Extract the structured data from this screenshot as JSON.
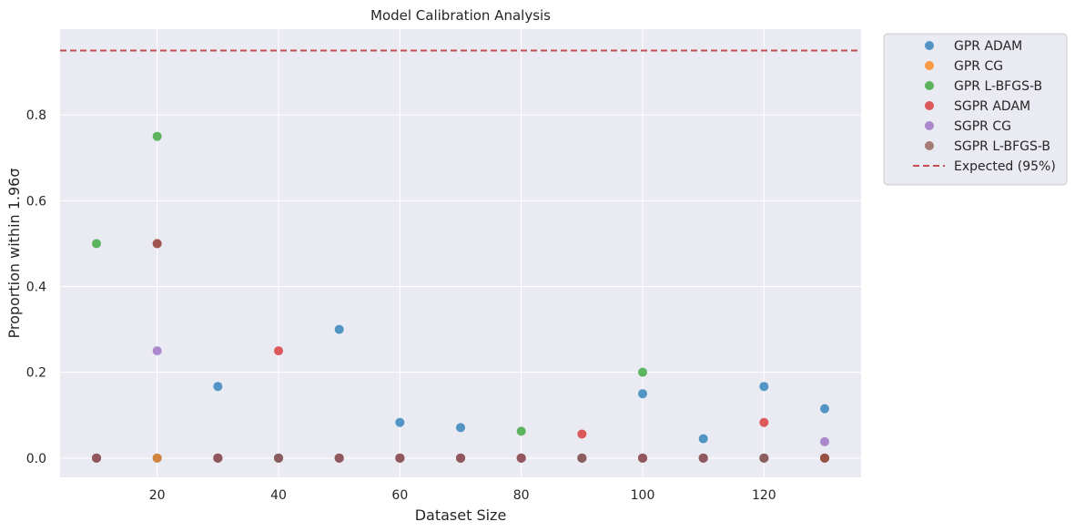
{
  "chart_data": {
    "type": "scatter",
    "title": "Model Calibration Analysis",
    "xlabel": "Dataset Size",
    "ylabel": "Proportion within 1.96σ",
    "xlim": [
      4,
      136
    ],
    "ylim": [
      -0.045,
      1.0
    ],
    "xticks": [
      20,
      40,
      60,
      80,
      100,
      120
    ],
    "yticks": [
      0.0,
      0.2,
      0.4,
      0.6,
      0.8
    ],
    "grid": true,
    "legend_position": "outside-top-right",
    "series": [
      {
        "name": "GPR ADAM",
        "color": "#1f77b4",
        "x": [
          10,
          20,
          30,
          40,
          50,
          60,
          70,
          80,
          90,
          100,
          110,
          120,
          130
        ],
        "y": [
          0.0,
          0.0,
          0.167,
          0.0,
          0.3,
          0.083,
          0.071,
          0.0,
          0.0,
          0.15,
          0.045,
          0.167,
          0.115
        ]
      },
      {
        "name": "GPR CG",
        "color": "#ff7f0e",
        "x": [
          10,
          20,
          30,
          40,
          50,
          60,
          70,
          80,
          90,
          100,
          110,
          120,
          130
        ],
        "y": [
          0.0,
          0.0,
          0.0,
          0.0,
          0.0,
          0.0,
          0.0,
          0.0,
          0.0,
          0.0,
          0.0,
          0.0,
          0.0
        ]
      },
      {
        "name": "GPR L-BFGS-B",
        "color": "#2ca02c",
        "x": [
          10,
          20,
          30,
          40,
          50,
          60,
          70,
          80,
          90,
          100,
          110,
          120,
          130
        ],
        "y": [
          0.5,
          0.75,
          0.0,
          0.0,
          0.0,
          0.0,
          0.0,
          0.0625,
          0.0,
          0.2,
          0.0,
          0.0,
          0.0
        ]
      },
      {
        "name": "SGPR ADAM",
        "color": "#d62728",
        "x": [
          10,
          20,
          30,
          40,
          50,
          60,
          70,
          80,
          90,
          100,
          110,
          120,
          130
        ],
        "y": [
          0.0,
          0.5,
          0.0,
          0.25,
          0.0,
          0.0,
          0.0,
          0.0,
          0.056,
          0.0,
          0.0,
          0.083,
          0.0
        ]
      },
      {
        "name": "SGPR CG",
        "color": "#9467bd",
        "x": [
          10,
          20,
          30,
          40,
          50,
          60,
          70,
          80,
          90,
          100,
          110,
          120,
          130
        ],
        "y": [
          0.0,
          0.25,
          0.0,
          0.0,
          0.0,
          0.0,
          0.0,
          0.0,
          0.0,
          0.0,
          0.0,
          0.0,
          0.038
        ]
      },
      {
        "name": "SGPR L-BFGS-B",
        "color": "#8c564b",
        "x": [
          10,
          20,
          30,
          40,
          50,
          60,
          70,
          80,
          90,
          100,
          110,
          120,
          130
        ],
        "y": [
          0.0,
          0.5,
          0.0,
          0.0,
          0.0,
          0.0,
          0.0,
          0.0,
          0.0,
          0.0,
          0.0,
          0.0,
          0.0
        ]
      }
    ],
    "reference_line": {
      "name": "Expected (95%)",
      "y": 0.95,
      "color": "#c44e52",
      "style": "dashed"
    },
    "background_color": "#eaeaf2",
    "grid_color": "#ffffff"
  }
}
